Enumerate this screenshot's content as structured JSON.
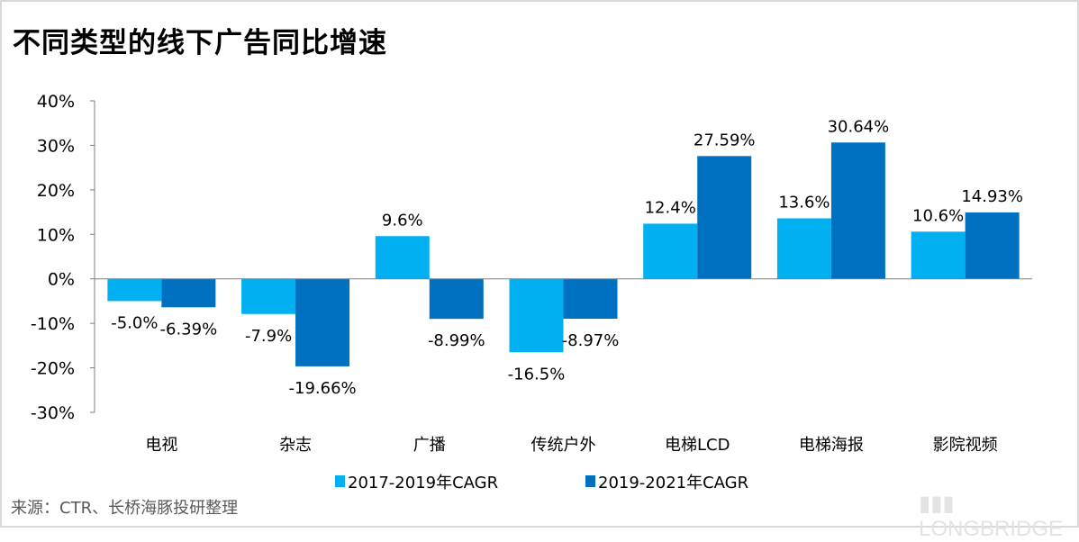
{
  "title": "不同类型的线下广告同比增速",
  "source": "来源：CTR、长桥海豚投研整理",
  "watermark": "LONGBRIDGE",
  "chart_data": {
    "type": "bar",
    "title": "不同类型的线下广告同比增速",
    "xlabel": "",
    "ylabel": "",
    "ylim": [
      -30,
      40
    ],
    "yticks": [
      "-30%",
      "-20%",
      "-10%",
      "0%",
      "10%",
      "20%",
      "30%",
      "40%"
    ],
    "grid": false,
    "legend_position": "bottom",
    "categories": [
      "电视",
      "杂志",
      "广播",
      "传统户外",
      "电梯LCD",
      "电梯海报",
      "影院视频"
    ],
    "series": [
      {
        "name": "2017-2019年CAGR",
        "color": "#00B0F0",
        "values": [
          -5.0,
          -7.9,
          9.6,
          -16.5,
          12.4,
          13.6,
          10.6
        ],
        "labels": [
          "-5.0%",
          "-7.9%",
          "9.6%",
          "-16.5%",
          "12.4%",
          "13.6%",
          "10.6%"
        ]
      },
      {
        "name": "2019-2021年CAGR",
        "color": "#0070C0",
        "values": [
          -6.39,
          -19.66,
          -8.99,
          -8.97,
          27.59,
          30.64,
          14.93
        ],
        "labels": [
          "-6.39%",
          "-19.66%",
          "-8.99%",
          "-8.97%",
          "27.59%",
          "30.64%",
          "14.93%"
        ]
      }
    ]
  }
}
